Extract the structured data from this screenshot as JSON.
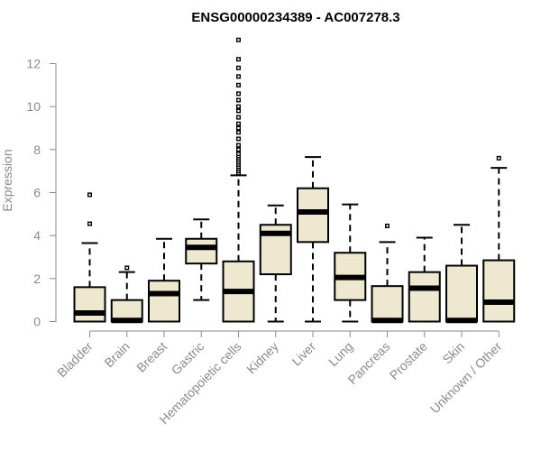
{
  "chart_data": {
    "type": "boxplot",
    "title": "ENSG00000234389 - AC007278.3",
    "xlabel": "",
    "ylabel": "Expression",
    "ylim": [
      0,
      13
    ],
    "yticks": [
      0,
      2,
      4,
      6,
      8,
      10,
      12
    ],
    "grid": false,
    "categories": [
      "Bladder",
      "Brain",
      "Breast",
      "Gastric",
      "Hematopoietic cells",
      "Kidney",
      "Liver",
      "Lung",
      "Pancreas",
      "Prostate",
      "Skin",
      "Unknown / Other"
    ],
    "series": [
      {
        "boxes": [
          {
            "whisker_low": 0,
            "q1": 0,
            "median": 0.4,
            "q3": 1.6,
            "whisker_high": 3.65,
            "outliers": [
              4.55,
              5.9
            ]
          },
          {
            "whisker_low": 0,
            "q1": 0,
            "median": 0.05,
            "q3": 1.0,
            "whisker_high": 2.3,
            "outliers": [
              2.5
            ]
          },
          {
            "whisker_low": 0,
            "q1": 0,
            "median": 1.3,
            "q3": 1.9,
            "whisker_high": 3.85,
            "outliers": []
          },
          {
            "whisker_low": 1.0,
            "q1": 2.7,
            "median": 3.45,
            "q3": 3.85,
            "whisker_high": 4.75,
            "outliers": []
          },
          {
            "whisker_low": 0,
            "q1": 0,
            "median": 1.4,
            "q3": 2.8,
            "whisker_high": 6.8,
            "outliers": [
              6.9,
              7.0,
              7.1,
              7.2,
              7.3,
              7.4,
              7.5,
              7.6,
              7.7,
              7.8,
              8.0,
              8.2,
              8.5,
              8.8,
              9.0,
              9.2,
              9.5,
              9.8,
              10.0,
              10.3,
              10.6,
              11.0,
              11.4,
              11.8,
              12.2,
              13.1
            ]
          },
          {
            "whisker_low": 0,
            "q1": 2.2,
            "median": 4.1,
            "q3": 4.5,
            "whisker_high": 5.4,
            "outliers": []
          },
          {
            "whisker_low": 0,
            "q1": 3.7,
            "median": 5.1,
            "q3": 6.2,
            "whisker_high": 7.65,
            "outliers": []
          },
          {
            "whisker_low": 0,
            "q1": 1.0,
            "median": 2.05,
            "q3": 3.2,
            "whisker_high": 5.45,
            "outliers": []
          },
          {
            "whisker_low": 0,
            "q1": 0,
            "median": 0.05,
            "q3": 1.65,
            "whisker_high": 3.7,
            "outliers": [
              4.45
            ]
          },
          {
            "whisker_low": 0,
            "q1": 0,
            "median": 1.55,
            "q3": 2.3,
            "whisker_high": 3.9,
            "outliers": []
          },
          {
            "whisker_low": 0,
            "q1": 0,
            "median": 0.05,
            "q3": 2.6,
            "whisker_high": 4.5,
            "outliers": []
          },
          {
            "whisker_low": 0,
            "q1": 0,
            "median": 0.9,
            "q3": 2.85,
            "whisker_high": 7.15,
            "outliers": [
              7.6
            ]
          }
        ]
      }
    ],
    "colors": {
      "box_fill": "#efe8d0",
      "stroke": "#000000",
      "axis": "#8a8a8a"
    }
  }
}
